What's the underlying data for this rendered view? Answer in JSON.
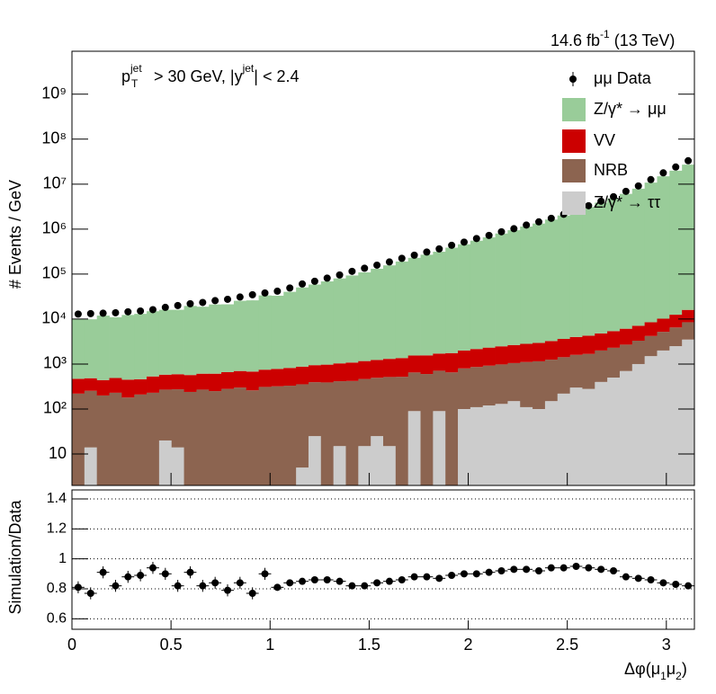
{
  "chart_data": [
    {
      "type": "stacked_histogram",
      "lumi": [
        "14.6 fb",
        "-1",
        " (13 TeV)"
      ],
      "cut": [
        "p",
        "jet",
        "T",
        " > 30 GeV,  |y",
        "jet",
        "| < 2.4"
      ],
      "ylabel": "# Events / GeV",
      "log_y": true,
      "xlim": [
        0,
        3.1416
      ],
      "ylim": [
        2,
        9000000000
      ],
      "yticks": [
        10,
        {
          "value": 100,
          "label": "10²"
        },
        {
          "value": 1000,
          "label": "10³"
        },
        {
          "value": 10000,
          "label": "10⁴"
        },
        {
          "value": 100000,
          "label": "10⁵"
        },
        {
          "value": 1000000,
          "label": "10⁶"
        },
        {
          "value": 10000000,
          "label": "10⁷"
        },
        {
          "value": 100000000,
          "label": "10⁸"
        },
        {
          "value": 1000000000,
          "label": "10⁹"
        }
      ],
      "bins": [
        0,
        0.0628,
        0.1257,
        0.1885,
        0.2513,
        0.3142,
        0.377,
        0.4398,
        0.5027,
        0.5655,
        0.6283,
        0.6912,
        0.754,
        0.8168,
        0.8796,
        0.9425,
        1.0053,
        1.0681,
        1.131,
        1.1938,
        1.2566,
        1.3195,
        1.3823,
        1.4451,
        1.508,
        1.5708,
        1.6336,
        1.6965,
        1.7593,
        1.8221,
        1.885,
        1.9478,
        2.0106,
        2.0735,
        2.1363,
        2.1991,
        2.2619,
        2.3248,
        2.3876,
        2.4504,
        2.5133,
        2.5761,
        2.6389,
        2.7018,
        2.7646,
        2.8274,
        2.8903,
        2.9531,
        3.0159,
        3.0788,
        3.1416
      ],
      "data": {
        "name": "μμ Data",
        "color": "#000000",
        "values": [
          12900,
          13200,
          13500,
          13800,
          14500,
          15100,
          16200,
          18200,
          20000,
          21900,
          23400,
          25700,
          27500,
          30900,
          34700,
          38000,
          41700,
          49000,
          60300,
          69200,
          81300,
          95500,
          115000,
          135000,
          158000,
          186000,
          224000,
          263000,
          309000,
          363000,
          437000,
          513000,
          617000,
          724000,
          871000,
          1020000,
          1230000,
          1450000,
          1740000,
          2140000,
          2630000,
          3310000,
          4170000,
          5250000,
          6920000,
          9120000,
          12600000,
          17800000,
          24000000,
          33100000
        ]
      },
      "series": [
        {
          "name": "Z/γ* → μμ",
          "color": "#99cc99",
          "values": [
            9600,
            9400,
            11500,
            10500,
            11900,
            12600,
            14400,
            15500,
            15500,
            19000,
            18200,
            20500,
            20600,
            24800,
            25400,
            32800,
            32300,
            39500,
            49500,
            57600,
            67800,
            79000,
            92000,
            108000,
            130000,
            155000,
            189000,
            228000,
            268000,
            312000,
            385000,
            457000,
            550000,
            653000,
            795000,
            942000,
            1137000,
            1326000,
            1627000,
            2002000,
            2487000,
            3098000,
            3863000,
            4812000,
            6068000,
            7908000,
            10810000,
            14920000,
            19890000,
            27110000
          ]
        },
        {
          "name": "VV",
          "color": "#cc0000",
          "values": [
            250,
            230,
            240,
            260,
            270,
            250,
            300,
            310,
            320,
            330,
            340,
            360,
            380,
            400,
            420,
            440,
            460,
            490,
            520,
            550,
            580,
            620,
            660,
            700,
            740,
            790,
            840,
            900,
            960,
            1000,
            1100,
            1200,
            1300,
            1400,
            1500,
            1600,
            1700,
            1800,
            2000,
            2200,
            2400,
            2600,
            2800,
            3100,
            3400,
            3800,
            4300,
            5000,
            6000,
            7500
          ]
        },
        {
          "name": "NRB",
          "color": "#8c6450",
          "values": [
            220,
            240,
            200,
            230,
            180,
            210,
            230,
            250,
            260,
            240,
            270,
            250,
            280,
            300,
            260,
            310,
            320,
            330,
            350,
            370,
            390,
            400,
            420,
            450,
            470,
            500,
            520,
            560,
            600,
            620,
            650,
            700,
            750,
            800,
            850,
            900,
            1000,
            1050,
            1100,
            1200,
            1300,
            1400,
            1600,
            1800,
            2000,
            2300,
            2700,
            3200,
            4000,
            5000
          ]
        },
        {
          "name": "Z/γ* → ττ",
          "color": "#cccccc",
          "values": [
            0,
            14,
            0,
            0,
            0,
            0,
            0,
            20,
            14,
            0,
            0,
            0,
            0,
            0,
            0,
            0,
            0,
            0,
            5,
            25,
            0,
            15,
            0,
            15,
            25,
            15,
            0,
            90,
            0,
            90,
            2,
            100,
            110,
            120,
            130,
            150,
            110,
            100,
            150,
            220,
            300,
            280,
            400,
            500,
            700,
            1000,
            1500,
            2000,
            2500,
            3500
          ]
        }
      ]
    },
    {
      "type": "ratio",
      "ylabel": "Simulation/Data",
      "xlabel": [
        "Δφ(μ",
        "1",
        "μ",
        "2",
        ")"
      ],
      "xlim": [
        0,
        3.1416
      ],
      "xticks": [
        0,
        0.5,
        1,
        1.5,
        2,
        2.5,
        3
      ],
      "ylim": [
        0.53,
        1.46
      ],
      "yticks": [
        0.6,
        0.8,
        1,
        1.2,
        1.4
      ],
      "grid": true,
      "values": [
        0.81,
        0.77,
        0.91,
        0.82,
        0.88,
        0.89,
        0.94,
        0.9,
        0.82,
        0.91,
        0.82,
        0.84,
        0.79,
        0.84,
        0.77,
        0.9,
        0.81,
        0.84,
        0.85,
        0.86,
        0.86,
        0.85,
        0.82,
        0.82,
        0.84,
        0.85,
        0.86,
        0.88,
        0.88,
        0.87,
        0.89,
        0.9,
        0.9,
        0.91,
        0.92,
        0.93,
        0.93,
        0.92,
        0.94,
        0.94,
        0.95,
        0.94,
        0.93,
        0.92,
        0.88,
        0.87,
        0.86,
        0.84,
        0.83,
        0.82
      ],
      "errors": [
        0.04,
        0.04,
        0.04,
        0.04,
        0.04,
        0.04,
        0.04,
        0.04,
        0.04,
        0.04,
        0.04,
        0.04,
        0.04,
        0.04,
        0.04,
        0.04,
        0.02,
        0.02,
        0.02,
        0.02,
        0.02,
        0.02,
        0.02,
        0.02,
        0.02,
        0.02,
        0.02,
        0.02,
        0.02,
        0.02,
        0.01,
        0.01,
        0.01,
        0.01,
        0.01,
        0.01,
        0.01,
        0.01,
        0.01,
        0.01,
        0.01,
        0.01,
        0.01,
        0.01,
        0.01,
        0.01,
        0.01,
        0.01,
        0.01,
        0.01
      ]
    }
  ]
}
